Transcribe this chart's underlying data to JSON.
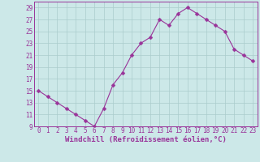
{
  "x": [
    0,
    1,
    2,
    3,
    4,
    5,
    6,
    7,
    8,
    9,
    10,
    11,
    12,
    13,
    14,
    15,
    16,
    17,
    18,
    19,
    20,
    21,
    22,
    23
  ],
  "y": [
    15,
    14,
    13,
    12,
    11,
    10,
    9,
    12,
    16,
    18,
    21,
    23,
    24,
    27,
    26,
    28,
    29,
    28,
    27,
    26,
    25,
    22,
    21,
    20
  ],
  "line_color": "#993399",
  "marker": "D",
  "marker_size": 2.5,
  "bg_color": "#cce8e8",
  "grid_color": "#aacccc",
  "xlabel": "Windchill (Refroidissement éolien,°C)",
  "xlabel_color": "#993399",
  "xlabel_fontsize": 6.5,
  "tick_color": "#993399",
  "tick_fontsize": 5.5,
  "ylim": [
    9,
    30
  ],
  "xlim_min": -0.5,
  "xlim_max": 23.5,
  "yticks": [
    9,
    11,
    13,
    15,
    17,
    19,
    21,
    23,
    25,
    27,
    29
  ],
  "xticks": [
    0,
    1,
    2,
    3,
    4,
    5,
    6,
    7,
    8,
    9,
    10,
    11,
    12,
    13,
    14,
    15,
    16,
    17,
    18,
    19,
    20,
    21,
    22,
    23
  ],
  "xtick_labels": [
    "0",
    "1",
    "2",
    "3",
    "4",
    "5",
    "6",
    "7",
    "8",
    "9",
    "10",
    "11",
    "12",
    "13",
    "14",
    "15",
    "16",
    "17",
    "18",
    "19",
    "20",
    "21",
    "22",
    "23"
  ]
}
